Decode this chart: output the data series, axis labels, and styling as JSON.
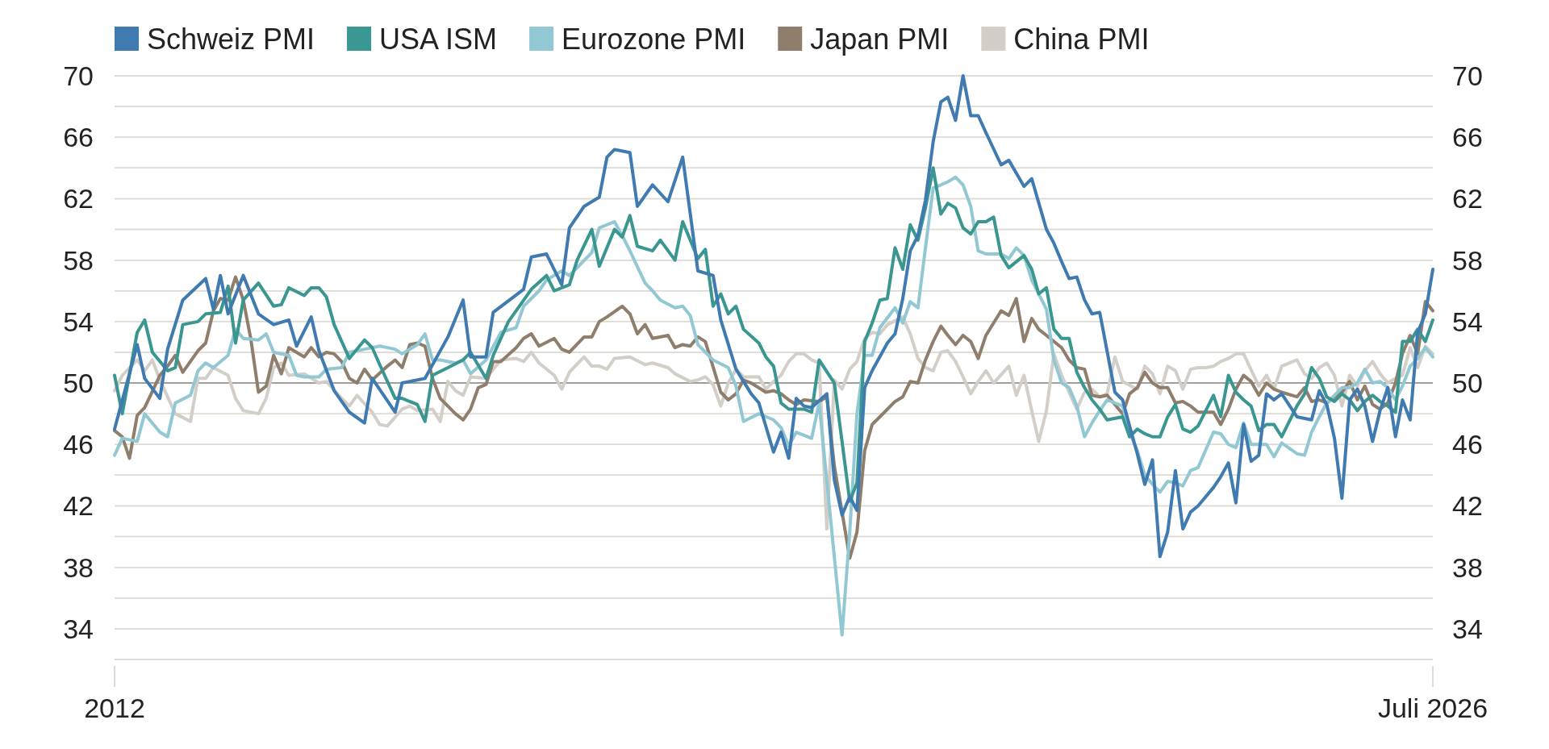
{
  "chart_data": {
    "type": "line",
    "xlim": [
      "2012-01",
      "2026-07"
    ],
    "xticks": [
      {
        "value": "2012-01",
        "label": "2012"
      },
      {
        "value": "2026-07",
        "label": "Juli 2026"
      }
    ],
    "ylim": [
      32,
      70
    ],
    "yticks": [
      {
        "value": 32,
        "label": null
      },
      34,
      {
        "value": 36,
        "label": null
      },
      38,
      {
        "value": 40,
        "label": null
      },
      42,
      {
        "value": 44,
        "label": null
      },
      46,
      {
        "value": 48,
        "label": null
      },
      50,
      {
        "value": 52,
        "label": null
      },
      54,
      {
        "value": 56,
        "label": null
      },
      58,
      {
        "value": 60,
        "label": null
      },
      62,
      {
        "value": 64,
        "label": null
      },
      66,
      {
        "value": 68,
        "label": null
      },
      70
    ],
    "y2lim": [
      32,
      70
    ],
    "y2ticks": [
      {
        "value": 32,
        "label": null
      },
      34,
      {
        "value": 36,
        "label": null
      },
      38,
      {
        "value": 40,
        "label": null
      },
      42,
      {
        "value": 44,
        "label": null
      },
      46,
      {
        "value": 48,
        "label": null
      },
      50,
      {
        "value": 52,
        "label": null
      },
      54,
      {
        "value": 56,
        "label": null
      },
      58,
      {
        "value": 60,
        "label": null
      },
      62,
      {
        "value": 64,
        "label": null
      },
      66,
      {
        "value": 68,
        "label": null
      },
      70
    ],
    "grid": "y",
    "legend": "top",
    "line_style": "solid",
    "ref_lines": [
      {
        "axis": "y",
        "value": 50,
        "color": "#8a8a8a"
      }
    ],
    "series": [
      {
        "name": "Schweiz PMI",
        "color": "#3f7bb0",
        "x": [
          "2012-01",
          "2012-04",
          "2012-05",
          "2012-07",
          "2012-08",
          "2012-10",
          "2013-01",
          "2013-02",
          "2013-03",
          "2013-04",
          "2013-06",
          "2013-08",
          "2013-10",
          "2013-12",
          "2014-01",
          "2014-03",
          "2014-04",
          "2014-06",
          "2014-08",
          "2014-10",
          "2014-11",
          "2015-02",
          "2015-03",
          "2015-06",
          "2015-09",
          "2015-11",
          "2015-12",
          "2016-02",
          "2016-03",
          "2016-07",
          "2016-08",
          "2016-10",
          "2016-12",
          "2017-01",
          "2017-03",
          "2017-05",
          "2017-06",
          "2017-07",
          "2017-09",
          "2017-10",
          "2017-12",
          "2018-02",
          "2018-04",
          "2018-06",
          "2018-08",
          "2018-09",
          "2018-11",
          "2019-01",
          "2019-02",
          "2019-04",
          "2019-05",
          "2019-06",
          "2019-07",
          "2019-08",
          "2019-09",
          "2019-11",
          "2019-12",
          "2020-01",
          "2020-02",
          "2020-03",
          "2020-04",
          "2020-05",
          "2020-07",
          "2020-08",
          "2020-09",
          "2020-10",
          "2020-11",
          "2020-12",
          "2021-01",
          "2021-02",
          "2021-03",
          "2021-04",
          "2021-05",
          "2021-06",
          "2021-07",
          "2021-08",
          "2021-10",
          "2021-11",
          "2022-01",
          "2022-02",
          "2022-04",
          "2022-05",
          "2022-06",
          "2022-07",
          "2022-08",
          "2022-09",
          "2022-10",
          "2022-11",
          "2023-01",
          "2023-02",
          "2023-03",
          "2023-04",
          "2023-05",
          "2023-06",
          "2023-07",
          "2023-08",
          "2023-09",
          "2023-10",
          "2023-11",
          "2023-12",
          "2024-02",
          "2024-03",
          "2024-04",
          "2024-05",
          "2024-06",
          "2024-07",
          "2024-08",
          "2024-09",
          "2024-10",
          "2024-11",
          "2025-01",
          "2025-03",
          "2025-04",
          "2025-05",
          "2025-06",
          "2025-07",
          "2025-08",
          "2025-09",
          "2025-10",
          "2025-11",
          "2025-12",
          "2026-01",
          "2026-02",
          "2026-03",
          "2026-04",
          "2026-05",
          "2026-06",
          "2026-07"
        ],
        "values": [
          47.0,
          52.5,
          50.3,
          49.0,
          52.2,
          55.4,
          56.8,
          54.8,
          57.0,
          54.5,
          57.0,
          54.5,
          53.8,
          54.1,
          52.4,
          54.3,
          52.1,
          49.5,
          48.1,
          47.4,
          50.3,
          48.1,
          50.0,
          50.3,
          53.0,
          55.4,
          51.7,
          51.7,
          54.6,
          56.1,
          58.2,
          58.4,
          56.4,
          60.1,
          61.5,
          62.1,
          64.7,
          65.2,
          65.0,
          61.5,
          62.9,
          61.8,
          64.7,
          57.3,
          57.0,
          54.1,
          50.9,
          49.3,
          48.7,
          45.5,
          46.8,
          45.1,
          49.0,
          48.5,
          48.4,
          49.3,
          43.7,
          41.4,
          42.6,
          41.7,
          49.7,
          50.8,
          52.6,
          53.2,
          55.5,
          58.6,
          59.6,
          61.9,
          65.7,
          68.3,
          68.6,
          67.1,
          70.0,
          67.4,
          67.4,
          66.3,
          64.2,
          64.5,
          62.8,
          63.3,
          60.0,
          59.1,
          57.9,
          56.8,
          56.9,
          55.4,
          54.5,
          54.6,
          49.4,
          48.9,
          47.2,
          45.4,
          43.4,
          45.0,
          38.7,
          40.3,
          44.3,
          40.5,
          41.6,
          42.0,
          43.2,
          43.9,
          44.8,
          42.2,
          47.3,
          44.9,
          45.3,
          49.3,
          48.9,
          49.3,
          47.8,
          47.6,
          49.5,
          48.6,
          46.4,
          42.5,
          48.9,
          49.6,
          48.5,
          46.2,
          48.2,
          49.7,
          46.5,
          48.9,
          47.6,
          53.3,
          54.5,
          57.4
        ]
      },
      {
        "name": "USA ISM",
        "color": "#3a9690",
        "x": [
          "2012-01",
          "2012-02",
          "2012-04",
          "2012-05",
          "2012-06",
          "2012-08",
          "2012-09",
          "2012-10",
          "2012-12",
          "2013-01",
          "2013-03",
          "2013-04",
          "2013-05",
          "2013-06",
          "2013-08",
          "2013-10",
          "2013-11",
          "2013-12",
          "2014-02",
          "2014-03",
          "2014-04",
          "2014-05",
          "2014-06",
          "2014-08",
          "2014-10",
          "2014-11",
          "2014-12",
          "2015-02",
          "2015-03",
          "2015-05",
          "2015-06",
          "2015-07",
          "2015-09",
          "2015-11",
          "2015-12",
          "2016-02",
          "2016-03",
          "2016-05",
          "2016-08",
          "2016-10",
          "2016-11",
          "2017-01",
          "2017-02",
          "2017-04",
          "2017-05",
          "2017-07",
          "2017-08",
          "2017-09",
          "2017-10",
          "2017-12",
          "2018-01",
          "2018-03",
          "2018-04",
          "2018-06",
          "2018-07",
          "2018-08",
          "2018-09",
          "2018-10",
          "2018-11",
          "2018-12",
          "2019-02",
          "2019-03",
          "2019-04",
          "2019-05",
          "2019-06",
          "2019-08",
          "2019-09",
          "2019-10",
          "2019-12",
          "2020-01",
          "2020-02",
          "2020-03",
          "2020-04",
          "2020-05",
          "2020-06",
          "2020-07",
          "2020-08",
          "2020-09",
          "2020-10",
          "2020-11",
          "2020-12",
          "2021-01",
          "2021-02",
          "2021-03",
          "2021-04",
          "2021-05",
          "2021-06",
          "2021-07",
          "2021-08",
          "2021-09",
          "2021-10",
          "2021-11",
          "2022-01",
          "2022-02",
          "2022-03",
          "2022-04",
          "2022-05",
          "2022-06",
          "2022-07",
          "2022-08",
          "2022-09",
          "2022-10",
          "2022-11",
          "2022-12",
          "2023-02",
          "2023-03",
          "2023-04",
          "2023-05",
          "2023-06",
          "2023-07",
          "2023-08",
          "2023-09",
          "2023-10",
          "2023-11",
          "2023-12",
          "2024-02",
          "2024-03",
          "2024-04",
          "2024-05",
          "2024-06",
          "2024-07",
          "2024-08",
          "2024-09",
          "2024-10",
          "2024-11",
          "2025-01",
          "2025-02",
          "2025-03",
          "2025-04",
          "2025-05",
          "2025-06",
          "2025-07",
          "2025-08",
          "2025-09",
          "2025-10",
          "2025-11",
          "2025-12",
          "2026-01",
          "2026-02",
          "2026-03",
          "2026-04",
          "2026-05",
          "2026-06",
          "2026-07"
        ],
        "values": [
          50.5,
          48.0,
          53.3,
          54.1,
          52.0,
          50.8,
          51.0,
          53.8,
          54.0,
          54.5,
          54.6,
          56.3,
          52.6,
          55.4,
          56.5,
          55.0,
          55.1,
          56.2,
          55.7,
          56.2,
          56.2,
          55.6,
          53.8,
          51.6,
          52.8,
          52.3,
          51.2,
          49.0,
          49.0,
          48.6,
          47.5,
          50.5,
          51.0,
          51.5,
          52.0,
          50.3,
          51.8,
          54.0,
          56.1,
          57.0,
          56.0,
          56.4,
          58.0,
          60.0,
          57.6,
          60.0,
          59.5,
          60.9,
          58.9,
          58.6,
          59.3,
          58.0,
          60.5,
          58.1,
          58.7,
          55.0,
          55.8,
          54.5,
          55.0,
          53.5,
          52.6,
          51.7,
          51.1,
          48.7,
          48.3,
          48.3,
          48.1,
          51.5,
          50.0,
          46.2,
          42.3,
          43.5,
          52.7,
          53.9,
          55.4,
          55.5,
          58.8,
          57.4,
          60.3,
          59.3,
          61.4,
          64.0,
          61.0,
          61.7,
          61.4,
          60.1,
          59.7,
          60.5,
          60.5,
          60.8,
          58.3,
          57.5,
          58.3,
          57.4,
          55.8,
          56.2,
          53.5,
          52.9,
          52.9,
          50.7,
          49.7,
          48.9,
          48.3,
          47.6,
          47.8,
          46.5,
          47.0,
          46.7,
          46.5,
          46.5,
          47.8,
          48.6,
          47.0,
          46.8,
          47.2,
          49.2,
          47.8,
          50.5,
          49.4,
          48.9,
          48.5,
          46.9,
          47.3,
          47.3,
          46.5,
          48.5,
          49.3,
          51.0,
          50.3,
          49.1,
          48.8,
          49.3,
          48.9,
          48.2,
          48.8,
          49.2,
          48.8,
          48.5,
          48.1,
          52.7,
          52.7,
          53.5,
          52.7,
          54.1
        ]
      },
      {
        "name": "Eurozone PMI",
        "color": "#92c8d3",
        "x": [
          "2012-01",
          "2012-02",
          "2012-04",
          "2012-05",
          "2012-07",
          "2012-08",
          "2012-09",
          "2012-11",
          "2012-12",
          "2013-01",
          "2013-02",
          "2013-04",
          "2013-05",
          "2013-06",
          "2013-08",
          "2013-09",
          "2013-10",
          "2013-12",
          "2014-01",
          "2014-02",
          "2014-04",
          "2014-05",
          "2014-07",
          "2014-08",
          "2014-10",
          "2014-12",
          "2015-02",
          "2015-03",
          "2015-05",
          "2015-06",
          "2015-07",
          "2015-08",
          "2015-10",
          "2015-11",
          "2015-12",
          "2016-02",
          "2016-04",
          "2016-06",
          "2016-07",
          "2016-09",
          "2016-10",
          "2016-12",
          "2017-01",
          "2017-02",
          "2017-04",
          "2017-05",
          "2017-07",
          "2017-08",
          "2017-09",
          "2017-11",
          "2017-12",
          "2018-01",
          "2018-03",
          "2018-04",
          "2018-05",
          "2018-06",
          "2018-08",
          "2018-10",
          "2018-11",
          "2018-12",
          "2019-02",
          "2019-04",
          "2019-05",
          "2019-06",
          "2019-07",
          "2019-09",
          "2019-10",
          "2020-01",
          "2020-02",
          "2020-03",
          "2020-04",
          "2020-05",
          "2020-06",
          "2020-08",
          "2020-09",
          "2020-10",
          "2020-11",
          "2020-12",
          "2021-01",
          "2021-02",
          "2021-03",
          "2021-04",
          "2021-05",
          "2021-06",
          "2021-07",
          "2021-08",
          "2021-10",
          "2021-11",
          "2021-12",
          "2022-01",
          "2022-02",
          "2022-04",
          "2022-05",
          "2022-06",
          "2022-07",
          "2022-08",
          "2022-09",
          "2022-10",
          "2022-11",
          "2022-12",
          "2023-02",
          "2023-03",
          "2023-04",
          "2023-05",
          "2023-06",
          "2023-07",
          "2023-08",
          "2023-09",
          "2023-10",
          "2023-11",
          "2023-12",
          "2024-02",
          "2024-03",
          "2024-04",
          "2024-05",
          "2024-06",
          "2024-07",
          "2024-08",
          "2024-09",
          "2024-10",
          "2024-11",
          "2025-01",
          "2025-02",
          "2025-03",
          "2025-04",
          "2025-05",
          "2025-06",
          "2025-07",
          "2025-08",
          "2025-09",
          "2025-10",
          "2025-11",
          "2025-12",
          "2026-01",
          "2026-02",
          "2026-03",
          "2026-04",
          "2026-05",
          "2026-06",
          "2026-07"
        ],
        "values": [
          45.3,
          46.4,
          46.2,
          48.0,
          46.8,
          46.5,
          48.7,
          49.2,
          50.8,
          51.3,
          51.0,
          51.8,
          53.5,
          52.9,
          52.8,
          53.2,
          52.0,
          51.8,
          50.5,
          50.4,
          50.4,
          50.9,
          51.0,
          52.0,
          52.2,
          52.4,
          52.2,
          51.9,
          52.5,
          53.2,
          51.5,
          51.5,
          51.3,
          51.5,
          50.6,
          51.5,
          53.3,
          53.6,
          55.0,
          56.0,
          56.7,
          57.3,
          57.0,
          57.5,
          58.5,
          60.1,
          60.5,
          59.6,
          58.6,
          56.5,
          56.0,
          55.4,
          54.9,
          55.0,
          54.4,
          52.5,
          51.5,
          51.0,
          49.8,
          47.5,
          48.0,
          47.6,
          47.1,
          45.9,
          46.8,
          46.4,
          48.7,
          33.6,
          40.3,
          48.0,
          51.8,
          51.8,
          53.6,
          54.9,
          53.9,
          55.3,
          54.9,
          58.8,
          62.7,
          62.9,
          63.1,
          63.4,
          62.9,
          61.5,
          58.6,
          58.4,
          58.4,
          58.1,
          58.8,
          58.3,
          56.7,
          54.8,
          51.5,
          50.0,
          49.7,
          48.5,
          46.5,
          47.4,
          48.2,
          48.9,
          48.5,
          46.8,
          45.6,
          44.0,
          43.4,
          42.9,
          43.6,
          43.5,
          43.3,
          44.3,
          44.5,
          46.8,
          46.7,
          46.0,
          45.8,
          47.4,
          46.0,
          46.0,
          46.0,
          45.2,
          46.1,
          45.4,
          45.3,
          46.8,
          47.8,
          48.7,
          49.2,
          49.7,
          49.7,
          50.0,
          50.9,
          50.0,
          50.1,
          49.7,
          48.9,
          49.8,
          51.1,
          51.6,
          52.3,
          51.7
        ]
      },
      {
        "name": "Japan PMI",
        "color": "#8f7e6c",
        "x": [
          "2012-01",
          "2012-02",
          "2012-03",
          "2012-04",
          "2012-05",
          "2012-07",
          "2012-08",
          "2012-09",
          "2012-10",
          "2012-12",
          "2013-01",
          "2013-02",
          "2013-03",
          "2013-04",
          "2013-05",
          "2013-06",
          "2013-07",
          "2013-08",
          "2013-09",
          "2013-10",
          "2013-11",
          "2013-12",
          "2014-02",
          "2014-03",
          "2014-04",
          "2014-05",
          "2014-06",
          "2014-07",
          "2014-08",
          "2014-09",
          "2014-10",
          "2014-11",
          "2015-01",
          "2015-02",
          "2015-03",
          "2015-04",
          "2015-05",
          "2015-06",
          "2015-07",
          "2015-08",
          "2015-10",
          "2015-11",
          "2015-12",
          "2016-01",
          "2016-02",
          "2016-03",
          "2016-04",
          "2016-06",
          "2016-07",
          "2016-08",
          "2016-09",
          "2016-11",
          "2016-12",
          "2017-01",
          "2017-03",
          "2017-04",
          "2017-05",
          "2017-06",
          "2017-08",
          "2017-09",
          "2017-10",
          "2017-11",
          "2017-12",
          "2018-02",
          "2018-03",
          "2018-04",
          "2018-05",
          "2018-06",
          "2018-07",
          "2018-09",
          "2018-10",
          "2018-11",
          "2018-12",
          "2019-01",
          "2019-03",
          "2019-04",
          "2019-05",
          "2019-06",
          "2019-07",
          "2019-08",
          "2019-10",
          "2019-11",
          "2019-12",
          "2020-01",
          "2020-02",
          "2020-03",
          "2020-04",
          "2020-05",
          "2020-06",
          "2020-08",
          "2020-09",
          "2020-10",
          "2020-11",
          "2020-12",
          "2021-01",
          "2021-02",
          "2021-03",
          "2021-04",
          "2021-05",
          "2021-06",
          "2021-07",
          "2021-08",
          "2021-10",
          "2021-11",
          "2021-12",
          "2022-01",
          "2022-02",
          "2022-03",
          "2022-04",
          "2022-06",
          "2022-07",
          "2022-08",
          "2022-09",
          "2022-10",
          "2022-11",
          "2022-12",
          "2023-02",
          "2023-03",
          "2023-04",
          "2023-05",
          "2023-06",
          "2023-07",
          "2023-08",
          "2023-09",
          "2023-10",
          "2023-11",
          "2023-12",
          "2024-02",
          "2024-03",
          "2024-04",
          "2024-05",
          "2024-06",
          "2024-07",
          "2024-08",
          "2024-09",
          "2024-10",
          "2024-11",
          "2025-01",
          "2025-02",
          "2025-03",
          "2025-04",
          "2025-05",
          "2025-06",
          "2025-07",
          "2025-08",
          "2025-09",
          "2025-10",
          "2025-11",
          "2025-12",
          "2026-01",
          "2026-02",
          "2026-03",
          "2026-04",
          "2026-05",
          "2026-06",
          "2026-07"
        ],
        "values": [
          46.9,
          46.5,
          45.1,
          47.9,
          48.4,
          50.5,
          51.1,
          51.8,
          50.7,
          52.1,
          52.6,
          54.7,
          55.5,
          55.4,
          56.9,
          55.4,
          52.9,
          49.4,
          49.8,
          51.8,
          50.6,
          52.3,
          51.7,
          52.3,
          51.7,
          52.0,
          51.9,
          51.4,
          50.3,
          50.0,
          50.9,
          50.2,
          51.1,
          51.5,
          51.0,
          52.5,
          52.6,
          52.4,
          50.3,
          49.0,
          48.0,
          47.6,
          48.3,
          49.7,
          49.9,
          51.4,
          51.4,
          52.3,
          52.9,
          53.2,
          52.4,
          52.9,
          52.2,
          52.0,
          53.0,
          53.0,
          54.0,
          54.3,
          55.0,
          54.5,
          53.2,
          53.8,
          52.9,
          53.1,
          52.3,
          52.5,
          52.4,
          53.0,
          52.7,
          49.4,
          48.9,
          49.3,
          50.2,
          50.0,
          49.4,
          49.5,
          49.3,
          48.9,
          48.6,
          48.9,
          48.8,
          49.1,
          44.6,
          41.6,
          38.6,
          40.3,
          45.6,
          47.3,
          47.8,
          48.8,
          49.1,
          50.1,
          50.0,
          51.5,
          52.7,
          53.7,
          53.1,
          52.5,
          53.1,
          52.7,
          51.6,
          53.1,
          54.7,
          54.4,
          55.5,
          52.7,
          54.2,
          53.5,
          53.1,
          52.3,
          51.5,
          51.0,
          50.9,
          49.2,
          49.1,
          49.2,
          48.0,
          49.3,
          49.7,
          50.7,
          50.0,
          49.7,
          49.7,
          48.7,
          48.8,
          48.5,
          48.1,
          48.1,
          47.3,
          48.3,
          49.6,
          50.5,
          50.1,
          49.2,
          50.0,
          49.6,
          49.4,
          49.1,
          49.7,
          48.8,
          48.9,
          48.7,
          49.1,
          49.4,
          50.1,
          48.9,
          49.8,
          48.6,
          48.3,
          48.7,
          50.0,
          51.9,
          53.1,
          51.9,
          55.3,
          54.7
        ]
      },
      {
        "name": "China PMI",
        "color": "#d3cfc8",
        "x": [
          "2012-01",
          "2012-02",
          "2012-04",
          "2012-05",
          "2012-06",
          "2012-07",
          "2012-09",
          "2012-11",
          "2012-12",
          "2013-01",
          "2013-02",
          "2013-04",
          "2013-05",
          "2013-06",
          "2013-08",
          "2013-09",
          "2013-10",
          "2013-11",
          "2013-12",
          "2014-02",
          "2014-04",
          "2014-05",
          "2014-07",
          "2014-08",
          "2014-09",
          "2014-11",
          "2014-12",
          "2015-01",
          "2015-03",
          "2015-04",
          "2015-05",
          "2015-07",
          "2015-08",
          "2015-09",
          "2015-10",
          "2015-11",
          "2015-12",
          "2016-02",
          "2016-03",
          "2016-04",
          "2016-06",
          "2016-07",
          "2016-08",
          "2016-09",
          "2016-11",
          "2016-12",
          "2017-01",
          "2017-03",
          "2017-04",
          "2017-05",
          "2017-06",
          "2017-07",
          "2017-09",
          "2017-11",
          "2017-12",
          "2018-02",
          "2018-03",
          "2018-05",
          "2018-06",
          "2018-07",
          "2018-08",
          "2018-09",
          "2018-10",
          "2018-11",
          "2018-12",
          "2019-02",
          "2019-03",
          "2019-04",
          "2019-05",
          "2019-06",
          "2019-07",
          "2019-08",
          "2019-09",
          "2019-10",
          "2019-11",
          "2019-12",
          "2020-01",
          "2020-02",
          "2020-03",
          "2020-04",
          "2020-05",
          "2020-06",
          "2020-07",
          "2020-09",
          "2020-10",
          "2020-11",
          "2020-12",
          "2021-01",
          "2021-02",
          "2021-03",
          "2021-04",
          "2021-05",
          "2021-06",
          "2021-07",
          "2021-08",
          "2021-09",
          "2021-11",
          "2021-12",
          "2022-01",
          "2022-02",
          "2022-03",
          "2022-04",
          "2022-05",
          "2022-06",
          "2022-07",
          "2022-08",
          "2022-09",
          "2022-10",
          "2022-11",
          "2022-12",
          "2023-01",
          "2023-02",
          "2023-04",
          "2023-05",
          "2023-06",
          "2023-07",
          "2023-08",
          "2023-09",
          "2023-10",
          "2023-11",
          "2023-12",
          "2024-01",
          "2024-02",
          "2024-03",
          "2024-04",
          "2024-05",
          "2024-06",
          "2024-08",
          "2024-09",
          "2024-10",
          "2024-11",
          "2025-01",
          "2025-02",
          "2025-03",
          "2025-04",
          "2025-05",
          "2025-06",
          "2025-07",
          "2025-08",
          "2025-09",
          "2025-10",
          "2025-11",
          "2025-12",
          "2026-01",
          "2026-02",
          "2026-03",
          "2026-04",
          "2026-05",
          "2026-06",
          "2026-07"
        ],
        "values": [
          49.5,
          50.5,
          51.5,
          50.8,
          51.5,
          50.2,
          48.0,
          47.5,
          50.3,
          50.3,
          51.0,
          50.5,
          49.0,
          48.2,
          48.0,
          49.0,
          51.0,
          51.3,
          50.5,
          50.6,
          50.0,
          50.1,
          49.0,
          48.5,
          49.2,
          48.1,
          47.3,
          47.2,
          48.3,
          48.5,
          48.2,
          48.3,
          47.5,
          50.1,
          49.5,
          49.2,
          50.4,
          50.3,
          50.9,
          51.5,
          51.6,
          51.4,
          52.0,
          51.3,
          50.5,
          49.6,
          50.7,
          51.7,
          51.1,
          51.1,
          50.9,
          51.6,
          51.7,
          51.2,
          51.3,
          51.0,
          50.6,
          50.1,
          50.2,
          50.4,
          49.9,
          48.5,
          50.0,
          50.9,
          50.4,
          50.4,
          49.6,
          50.1,
          50.5,
          51.4,
          51.9,
          51.9,
          51.5,
          51.3,
          40.5,
          50.2,
          49.6,
          50.9,
          51.4,
          52.9,
          53.3,
          53.2,
          53.8,
          54.3,
          53.2,
          51.6,
          51.0,
          50.8,
          52.0,
          52.1,
          51.4,
          50.4,
          49.3,
          50.1,
          50.8,
          50.0,
          51.1,
          49.2,
          50.5,
          48.2,
          46.2,
          48.2,
          51.9,
          50.5,
          49.4,
          48.3,
          49.4,
          49.6,
          49.1,
          49.3,
          51.7,
          50.1,
          49.6,
          51.1,
          50.6,
          49.3,
          51.1,
          50.8,
          49.6,
          50.9,
          51.0,
          51.0,
          51.1,
          51.4,
          51.6,
          51.9,
          51.9,
          49.8,
          50.5,
          49.6,
          51.1,
          51.5,
          50.6,
          50.3,
          51.0,
          51.3,
          50.5,
          48.5,
          50.5,
          49.8,
          50.8,
          51.4,
          50.6,
          50.0,
          50.3,
          50.5,
          52.3,
          51.0,
          52.4,
          51.9
        ]
      }
    ]
  }
}
